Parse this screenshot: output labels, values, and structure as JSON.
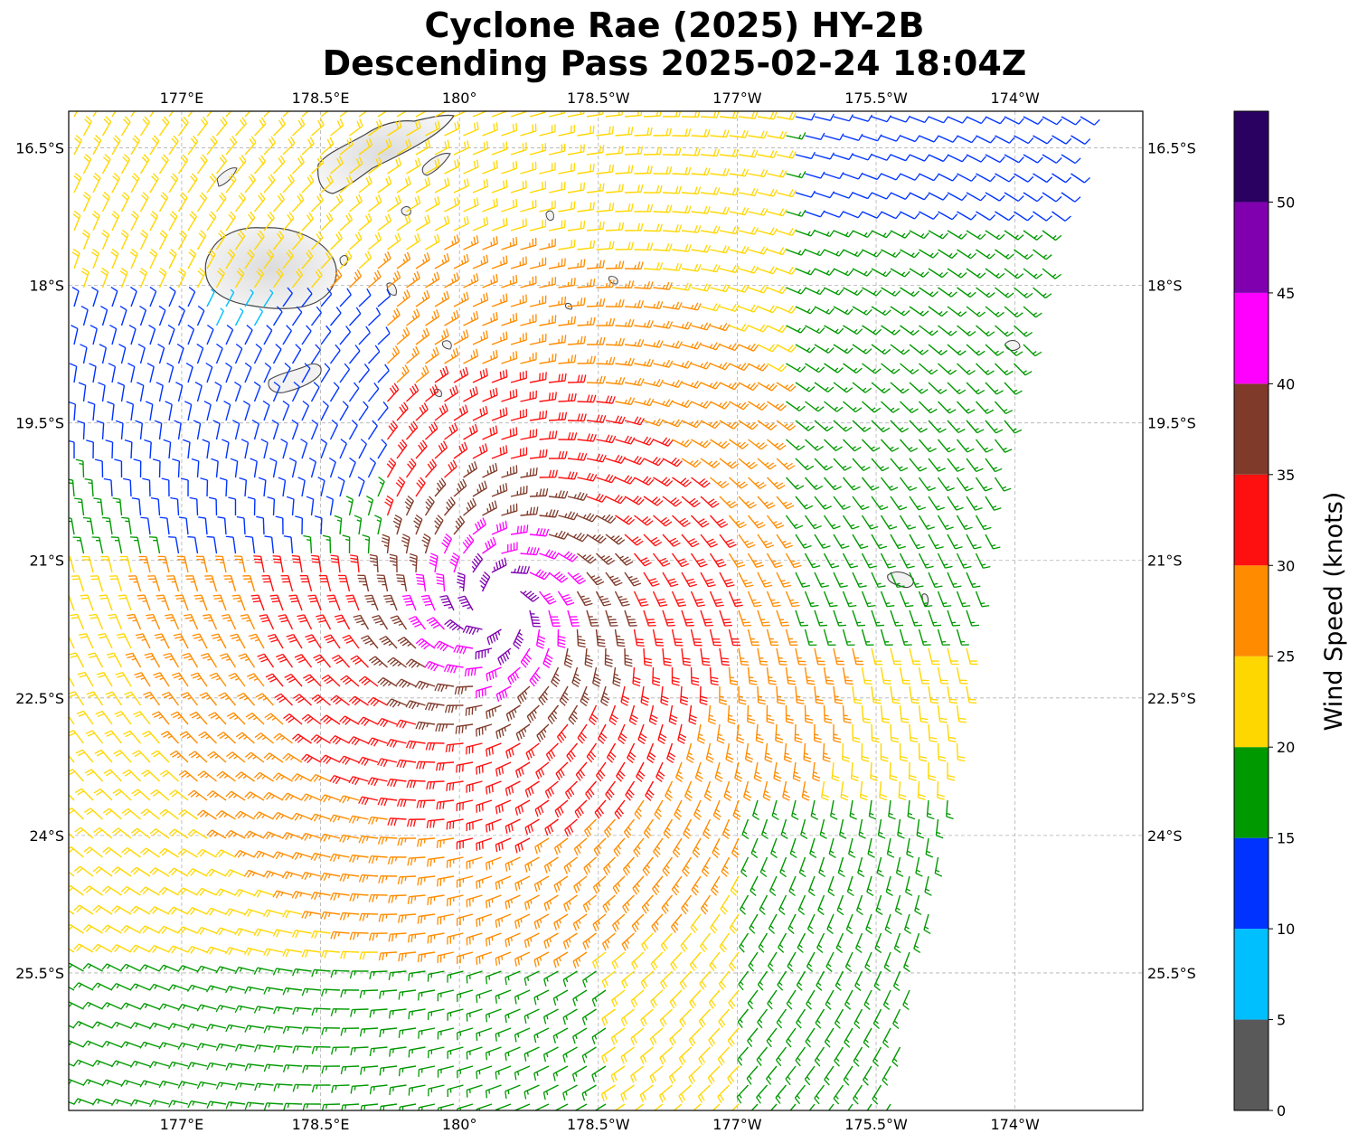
{
  "title": {
    "line1": "Cyclone Rae (2025) HY-2B",
    "line2": "Descending Pass 2025-02-24 18:04Z"
  },
  "map": {
    "lon_ticks": [
      {
        "lon": 177.0,
        "label": "177°E"
      },
      {
        "lon": 178.5,
        "label": "178.5°E"
      },
      {
        "lon": 180.0,
        "label": "180°"
      },
      {
        "lon": 181.5,
        "label": "178.5°W"
      },
      {
        "lon": 183.0,
        "label": "177°W"
      },
      {
        "lon": 184.5,
        "label": "175.5°W"
      },
      {
        "lon": 186.0,
        "label": "174°W"
      }
    ],
    "lat_ticks": [
      {
        "lat": -16.5,
        "label": "16.5°S"
      },
      {
        "lat": -18.0,
        "label": "18°S"
      },
      {
        "lat": -19.5,
        "label": "19.5°S"
      },
      {
        "lat": -21.0,
        "label": "21°S"
      },
      {
        "lat": -22.5,
        "label": "22.5°S"
      },
      {
        "lat": -24.0,
        "label": "24°S"
      },
      {
        "lat": -25.5,
        "label": "25.5°S"
      }
    ],
    "lon_range": [
      175.78,
      187.38
    ],
    "lat_range": [
      -27.0,
      -16.1
    ],
    "grid": true,
    "storm_center": {
      "lon": 180.4,
      "lat": -21.5
    },
    "land": "light gray shaded islands with dark outline"
  },
  "colorbar": {
    "label": "Wind Speed (knots)",
    "ticks": [
      "0",
      "5",
      "10",
      "15",
      "20",
      "25",
      "30",
      "35",
      "40",
      "45",
      "50"
    ],
    "bins": [
      {
        "min": 0,
        "max": 5,
        "color": "#595959"
      },
      {
        "min": 5,
        "max": 10,
        "color": "#00bfff"
      },
      {
        "min": 10,
        "max": 15,
        "color": "#0033ff"
      },
      {
        "min": 15,
        "max": 20,
        "color": "#009900"
      },
      {
        "min": 20,
        "max": 25,
        "color": "#ffd700"
      },
      {
        "min": 25,
        "max": 30,
        "color": "#ff8c00"
      },
      {
        "min": 30,
        "max": 35,
        "color": "#ff1010"
      },
      {
        "min": 35,
        "max": 40,
        "color": "#7f3a2a"
      },
      {
        "min": 40,
        "max": 45,
        "color": "#ff00ff"
      },
      {
        "min": 45,
        "max": 50,
        "color": "#8000b0"
      },
      {
        "min": 50,
        "max": 55,
        "color": "#2a0060"
      }
    ]
  }
}
